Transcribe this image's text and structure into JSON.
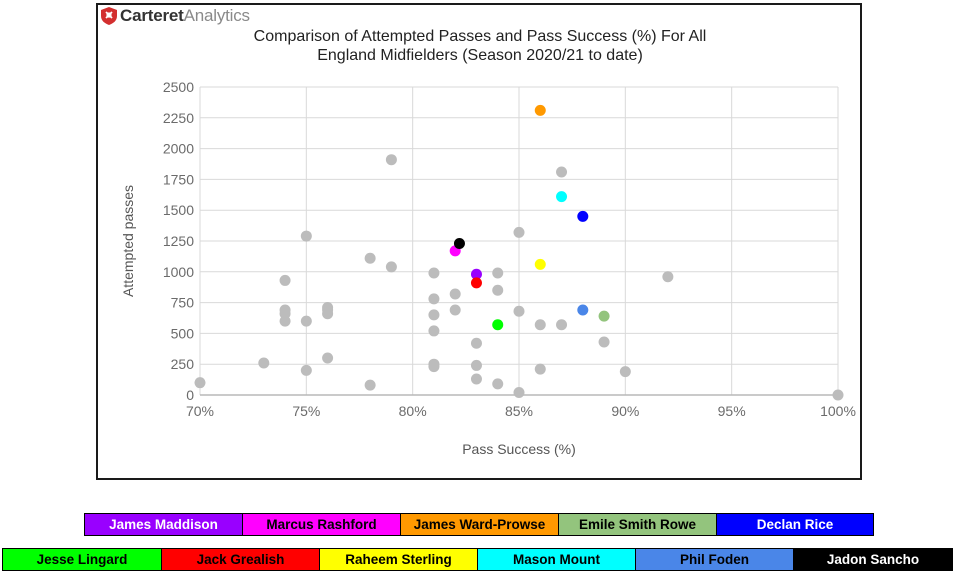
{
  "brand": {
    "bold": "Carteret",
    "light": "Analytics"
  },
  "colors": {
    "default_point": "#bcbcbc",
    "grid": "#d9d9d9",
    "axis": "#b8b8b8",
    "tick_text": "#6b6b6b"
  },
  "chart_data": {
    "type": "scatter",
    "title_lines": [
      "Comparison of Attempted Passes and Pass Success (%) For All",
      "England Midfielders (Season 2020/21 to date)"
    ],
    "xlabel": "Pass Success (%)",
    "ylabel": "Attempted passes",
    "xlim": [
      70,
      100
    ],
    "ylim": [
      0,
      2500
    ],
    "x_ticks": [
      "70%",
      "75%",
      "80%",
      "85%",
      "90%",
      "95%",
      "100%"
    ],
    "y_ticks": [
      "0",
      "250",
      "500",
      "750",
      "1000",
      "1250",
      "1500",
      "1750",
      "2000",
      "2250",
      "2500"
    ],
    "grid": true,
    "points": [
      {
        "x": 70,
        "y": 100
      },
      {
        "x": 73,
        "y": 260
      },
      {
        "x": 74,
        "y": 930
      },
      {
        "x": 74,
        "y": 690
      },
      {
        "x": 74,
        "y": 660
      },
      {
        "x": 74,
        "y": 600
      },
      {
        "x": 75,
        "y": 1290
      },
      {
        "x": 75,
        "y": 600
      },
      {
        "x": 75,
        "y": 200
      },
      {
        "x": 76,
        "y": 710
      },
      {
        "x": 76,
        "y": 690
      },
      {
        "x": 76,
        "y": 660
      },
      {
        "x": 76,
        "y": 300
      },
      {
        "x": 78,
        "y": 1110
      },
      {
        "x": 78,
        "y": 80
      },
      {
        "x": 79,
        "y": 1910
      },
      {
        "x": 79,
        "y": 1040
      },
      {
        "x": 81,
        "y": 990
      },
      {
        "x": 81,
        "y": 780
      },
      {
        "x": 81,
        "y": 650
      },
      {
        "x": 81,
        "y": 520
      },
      {
        "x": 81,
        "y": 250
      },
      {
        "x": 81,
        "y": 230
      },
      {
        "x": 82,
        "y": 820
      },
      {
        "x": 82,
        "y": 690
      },
      {
        "x": 83,
        "y": 420
      },
      {
        "x": 83,
        "y": 240
      },
      {
        "x": 83,
        "y": 130
      },
      {
        "x": 84,
        "y": 990
      },
      {
        "x": 84,
        "y": 850
      },
      {
        "x": 84,
        "y": 90
      },
      {
        "x": 85,
        "y": 1320
      },
      {
        "x": 85,
        "y": 680
      },
      {
        "x": 85,
        "y": 20
      },
      {
        "x": 86,
        "y": 570
      },
      {
        "x": 86,
        "y": 210
      },
      {
        "x": 87,
        "y": 1810
      },
      {
        "x": 87,
        "y": 570
      },
      {
        "x": 89,
        "y": 430
      },
      {
        "x": 90,
        "y": 190
      },
      {
        "x": 92,
        "y": 960
      },
      {
        "x": 100,
        "y": 0
      },
      {
        "x": 83,
        "y": 980,
        "player": "James Maddison"
      },
      {
        "x": 82,
        "y": 1170,
        "player": "Marcus Rashford"
      },
      {
        "x": 86,
        "y": 2310,
        "player": "James Ward-Prowse"
      },
      {
        "x": 89,
        "y": 640,
        "player": "Emile Smith Rowe"
      },
      {
        "x": 88,
        "y": 1450,
        "player": "Declan Rice"
      },
      {
        "x": 84,
        "y": 570,
        "player": "Jesse Lingard"
      },
      {
        "x": 83,
        "y": 910,
        "player": "Jack Grealish"
      },
      {
        "x": 86,
        "y": 1060,
        "player": "Raheem Sterling"
      },
      {
        "x": 87,
        "y": 1610,
        "player": "Mason Mount"
      },
      {
        "x": 88,
        "y": 690,
        "player": "Phil Foden"
      },
      {
        "x": 82.2,
        "y": 1230,
        "player": "Jadon Sancho"
      }
    ]
  },
  "legend": {
    "row1": [
      {
        "label": "James Maddison",
        "color": "#9900ff",
        "text_color": "#ffffff"
      },
      {
        "label": "Marcus Rashford",
        "color": "#ff00ff",
        "text_color": "#000000"
      },
      {
        "label": "James Ward-Prowse",
        "color": "#ff9900",
        "text_color": "#000000"
      },
      {
        "label": "Emile Smith Rowe",
        "color": "#93c47d",
        "text_color": "#000000"
      },
      {
        "label": "Declan Rice",
        "color": "#0000ff",
        "text_color": "#ffffff"
      }
    ],
    "row2": [
      {
        "label": "Jesse Lingard",
        "color": "#00ff00",
        "text_color": "#000000"
      },
      {
        "label": "Jack Grealish",
        "color": "#ff0000",
        "text_color": "#000000"
      },
      {
        "label": "Raheem Sterling",
        "color": "#ffff00",
        "text_color": "#000000"
      },
      {
        "label": "Mason Mount",
        "color": "#00ffff",
        "text_color": "#000000"
      },
      {
        "label": "Phil Foden",
        "color": "#4a86e8",
        "text_color": "#000000"
      },
      {
        "label": "Jadon Sancho",
        "color": "#000000",
        "text_color": "#ffffff"
      }
    ]
  }
}
